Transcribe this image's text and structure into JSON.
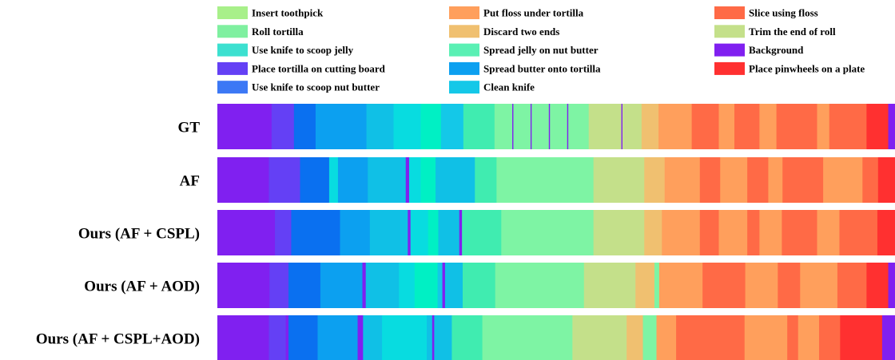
{
  "chart_data": {
    "type": "segmentation",
    "title": "",
    "legend": [
      {
        "key": "insert_toothpick",
        "label": "Insert toothpick",
        "color": "#a8f08a"
      },
      {
        "key": "roll_tortilla",
        "label": "Roll tortilla",
        "color": "#7ff0a0"
      },
      {
        "key": "use_knife_jelly",
        "label": "Use knife to scoop jelly",
        "color": "#3ce0d0"
      },
      {
        "key": "place_tortilla",
        "label": "Place tortilla on cutting board",
        "color": "#6440f5"
      },
      {
        "key": "use_knife_nut",
        "label": "Use knife to scoop nut butter",
        "color": "#3c78f5"
      },
      {
        "key": "put_floss",
        "label": "Put floss under tortilla",
        "color": "#ff9f5c"
      },
      {
        "key": "discard_ends",
        "label": "Discard two ends",
        "color": "#f0c070"
      },
      {
        "key": "spread_jelly",
        "label": "Spread jelly on nut butter",
        "color": "#5af0b4"
      },
      {
        "key": "spread_butter",
        "label": "Spread butter onto tortilla",
        "color": "#0ca0f0"
      },
      {
        "key": "clean_knife",
        "label": "Clean knife",
        "color": "#14c8e8"
      },
      {
        "key": "slice_floss",
        "label": "Slice using floss",
        "color": "#ff6a46"
      },
      {
        "key": "trim_end",
        "label": "Trim the end of roll",
        "color": "#c4e08a"
      },
      {
        "key": "background",
        "label": "Background",
        "color": "#8020f0"
      },
      {
        "key": "place_pinwheels",
        "label": "Place pinwheels on a plate",
        "color": "#ff3030"
      }
    ],
    "colors": {
      "seg_a": "#8020f0",
      "seg_b": "#6440f5",
      "seg_c": "#0a70f0",
      "seg_d": "#0ca0f0",
      "seg_e": "#10c0e6",
      "seg_f": "#08dce0",
      "seg_g": "#00f0c4",
      "seg_h": "#14c8e8",
      "seg_i": "#40ecb0",
      "seg_j": "#7ef4a4",
      "seg_k": "#c4e08a",
      "seg_l": "#f0c070",
      "seg_m": "#ff9f5c",
      "seg_n": "#ff6a46",
      "seg_o": "#ff3030"
    },
    "rows": [
      {
        "label": "GT",
        "segments": [
          [
            "seg_a",
            0.0,
            0.08
          ],
          [
            "seg_b",
            0.08,
            0.113
          ],
          [
            "seg_c",
            0.113,
            0.145
          ],
          [
            "seg_d",
            0.145,
            0.22
          ],
          [
            "seg_e",
            0.22,
            0.26
          ],
          [
            "seg_f",
            0.26,
            0.3
          ],
          [
            "seg_g",
            0.3,
            0.33
          ],
          [
            "seg_h",
            0.33,
            0.363
          ],
          [
            "seg_i",
            0.363,
            0.409
          ],
          [
            "seg_j",
            0.409,
            0.548
          ],
          [
            "seg_k",
            0.548,
            0.626
          ],
          [
            "seg_l",
            0.626,
            0.651
          ],
          [
            "seg_m",
            0.651,
            0.7
          ],
          [
            "seg_n",
            0.7,
            0.74
          ],
          [
            "seg_m",
            0.74,
            0.763
          ],
          [
            "seg_n",
            0.763,
            0.8
          ],
          [
            "seg_m",
            0.8,
            0.825
          ],
          [
            "seg_n",
            0.825,
            0.885
          ],
          [
            "seg_m",
            0.885,
            0.903
          ],
          [
            "seg_n",
            0.903,
            0.958
          ],
          [
            "seg_o",
            0.958,
            0.99
          ],
          [
            "seg_a",
            0.99,
            1.0
          ]
        ],
        "ticks": [
          0.436,
          0.463,
          0.49,
          0.517,
          0.597
        ]
      },
      {
        "label": "AF",
        "segments": [
          [
            "seg_a",
            0.0,
            0.076
          ],
          [
            "seg_b",
            0.076,
            0.122
          ],
          [
            "seg_c",
            0.122,
            0.165
          ],
          [
            "seg_f",
            0.165,
            0.178
          ],
          [
            "seg_d",
            0.178,
            0.222
          ],
          [
            "seg_e",
            0.222,
            0.278
          ],
          [
            "seg_a",
            0.278,
            0.283
          ],
          [
            "seg_f",
            0.283,
            0.3
          ],
          [
            "seg_g",
            0.3,
            0.322
          ],
          [
            "seg_e",
            0.322,
            0.38
          ],
          [
            "seg_i",
            0.38,
            0.412
          ],
          [
            "seg_j",
            0.412,
            0.555
          ],
          [
            "seg_k",
            0.555,
            0.63
          ],
          [
            "seg_l",
            0.63,
            0.66
          ],
          [
            "seg_m",
            0.66,
            0.712
          ],
          [
            "seg_n",
            0.712,
            0.742
          ],
          [
            "seg_m",
            0.742,
            0.782
          ],
          [
            "seg_n",
            0.782,
            0.813
          ],
          [
            "seg_m",
            0.813,
            0.834
          ],
          [
            "seg_n",
            0.834,
            0.894
          ],
          [
            "seg_m",
            0.894,
            0.952
          ],
          [
            "seg_n",
            0.952,
            0.975
          ],
          [
            "seg_o",
            0.975,
            1.0
          ]
        ],
        "ticks": []
      },
      {
        "label": "Ours (AF + CSPL)",
        "segments": [
          [
            "seg_a",
            0.0,
            0.085
          ],
          [
            "seg_b",
            0.085,
            0.109
          ],
          [
            "seg_c",
            0.109,
            0.181
          ],
          [
            "seg_d",
            0.181,
            0.225
          ],
          [
            "seg_e",
            0.225,
            0.281
          ],
          [
            "seg_a",
            0.281,
            0.285
          ],
          [
            "seg_f",
            0.285,
            0.311
          ],
          [
            "seg_g",
            0.311,
            0.326
          ],
          [
            "seg_e",
            0.326,
            0.357
          ],
          [
            "seg_a",
            0.357,
            0.361
          ],
          [
            "seg_i",
            0.361,
            0.419
          ],
          [
            "seg_j",
            0.419,
            0.555
          ],
          [
            "seg_k",
            0.555,
            0.63
          ],
          [
            "seg_l",
            0.63,
            0.656
          ],
          [
            "seg_m",
            0.656,
            0.712
          ],
          [
            "seg_n",
            0.712,
            0.74
          ],
          [
            "seg_m",
            0.74,
            0.782
          ],
          [
            "seg_n",
            0.782,
            0.8
          ],
          [
            "seg_m",
            0.8,
            0.833
          ],
          [
            "seg_n",
            0.833,
            0.885
          ],
          [
            "seg_m",
            0.885,
            0.918
          ],
          [
            "seg_n",
            0.918,
            0.974
          ],
          [
            "seg_o",
            0.974,
            1.0
          ]
        ],
        "ticks": []
      },
      {
        "label": "Ours (AF + AOD)",
        "segments": [
          [
            "seg_a",
            0.0,
            0.077
          ],
          [
            "seg_b",
            0.077,
            0.105
          ],
          [
            "seg_c",
            0.105,
            0.152
          ],
          [
            "seg_d",
            0.152,
            0.214
          ],
          [
            "seg_a",
            0.214,
            0.219
          ],
          [
            "seg_e",
            0.219,
            0.268
          ],
          [
            "seg_f",
            0.268,
            0.291
          ],
          [
            "seg_g",
            0.291,
            0.325
          ],
          [
            "seg_h",
            0.325,
            0.332
          ],
          [
            "seg_a",
            0.332,
            0.336
          ],
          [
            "seg_e",
            0.336,
            0.362
          ],
          [
            "seg_i",
            0.362,
            0.41
          ],
          [
            "seg_j",
            0.41,
            0.541
          ],
          [
            "seg_k",
            0.541,
            0.617
          ],
          [
            "seg_l",
            0.617,
            0.645
          ],
          [
            "seg_j",
            0.645,
            0.652
          ],
          [
            "seg_m",
            0.652,
            0.716
          ],
          [
            "seg_n",
            0.716,
            0.779
          ],
          [
            "seg_m",
            0.779,
            0.827
          ],
          [
            "seg_n",
            0.827,
            0.86
          ],
          [
            "seg_m",
            0.86,
            0.915
          ],
          [
            "seg_n",
            0.915,
            0.958
          ],
          [
            "seg_o",
            0.958,
            0.99
          ],
          [
            "seg_a",
            0.99,
            1.0
          ]
        ],
        "ticks": []
      },
      {
        "label": "Ours (AF + CSPL+AOD)",
        "segments": [
          [
            "seg_a",
            0.0,
            0.076
          ],
          [
            "seg_b",
            0.076,
            0.101
          ],
          [
            "seg_a",
            0.101,
            0.105
          ],
          [
            "seg_c",
            0.105,
            0.148
          ],
          [
            "seg_d",
            0.148,
            0.207
          ],
          [
            "seg_a",
            0.207,
            0.215
          ],
          [
            "seg_e",
            0.215,
            0.243
          ],
          [
            "seg_f",
            0.243,
            0.309
          ],
          [
            "seg_e",
            0.309,
            0.317
          ],
          [
            "seg_a",
            0.317,
            0.32
          ],
          [
            "seg_e",
            0.32,
            0.346
          ],
          [
            "seg_i",
            0.346,
            0.391
          ],
          [
            "seg_j",
            0.391,
            0.524
          ],
          [
            "seg_k",
            0.524,
            0.604
          ],
          [
            "seg_l",
            0.604,
            0.628
          ],
          [
            "seg_j",
            0.628,
            0.648
          ],
          [
            "seg_m",
            0.648,
            0.677
          ],
          [
            "seg_n",
            0.677,
            0.778
          ],
          [
            "seg_m",
            0.778,
            0.841
          ],
          [
            "seg_n",
            0.841,
            0.857
          ],
          [
            "seg_m",
            0.857,
            0.888
          ],
          [
            "seg_n",
            0.888,
            0.919
          ],
          [
            "seg_o",
            0.919,
            0.981
          ],
          [
            "seg_a",
            0.981,
            1.0
          ]
        ],
        "ticks": []
      }
    ]
  }
}
